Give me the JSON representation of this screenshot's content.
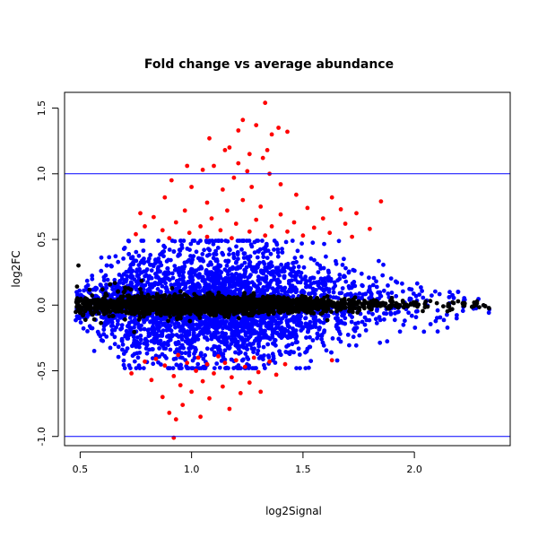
{
  "chart_data": {
    "type": "scatter",
    "title": "Fold change vs average abundance",
    "xlabel": "log2Signal",
    "ylabel": "log2FC",
    "xlim": [
      0.43,
      2.43
    ],
    "ylim": [
      -1.07,
      1.62
    ],
    "x_ticks": [
      "0.5",
      "1.0",
      "1.5",
      "2.0"
    ],
    "y_ticks": [
      "-1.0",
      "-0.5",
      "0.0",
      "0.5",
      "1.0",
      "1.5"
    ],
    "hlines": [
      1.0,
      -1.0
    ],
    "hline_color": "#0000ff",
    "grid": false,
    "legend": false,
    "series_colors": {
      "black": "#000000",
      "blue": "#0000ff",
      "red": "#ff0000"
    },
    "density_bands": [
      {
        "x": 0.5,
        "black_sd": 0.03,
        "blue_sd": 0.05
      },
      {
        "x": 0.7,
        "black_sd": 0.03,
        "blue_sd": 0.12
      },
      {
        "x": 1.0,
        "black_sd": 0.03,
        "blue_sd": 0.14
      },
      {
        "x": 1.3,
        "black_sd": 0.03,
        "blue_sd": 0.14
      },
      {
        "x": 1.6,
        "black_sd": 0.02,
        "blue_sd": 0.11
      },
      {
        "x": 2.0,
        "black_sd": 0.02,
        "blue_sd": 0.06
      },
      {
        "x": 2.33,
        "black_sd": 0.01,
        "blue_sd": 0.02
      }
    ],
    "highlighted_points": [
      [
        1.33,
        1.54
      ],
      [
        1.23,
        1.41
      ],
      [
        1.29,
        1.37
      ],
      [
        1.39,
        1.35
      ],
      [
        1.43,
        1.32
      ],
      [
        1.21,
        1.33
      ],
      [
        1.08,
        1.27
      ],
      [
        1.36,
        1.3
      ],
      [
        1.17,
        1.2
      ],
      [
        1.34,
        1.18
      ],
      [
        1.26,
        1.15
      ],
      [
        1.15,
        1.18
      ],
      [
        1.32,
        1.12
      ],
      [
        1.21,
        1.08
      ],
      [
        1.1,
        1.06
      ],
      [
        1.05,
        1.03
      ],
      [
        0.98,
        1.06
      ],
      [
        1.25,
        1.02
      ],
      [
        1.35,
        1.0
      ],
      [
        1.19,
        0.97
      ],
      [
        0.91,
        0.95
      ],
      [
        1.4,
        0.92
      ],
      [
        1.0,
        0.9
      ],
      [
        1.27,
        0.9
      ],
      [
        1.14,
        0.88
      ],
      [
        1.47,
        0.84
      ],
      [
        1.63,
        0.82
      ],
      [
        0.88,
        0.82
      ],
      [
        1.23,
        0.8
      ],
      [
        1.07,
        0.78
      ],
      [
        1.85,
        0.79
      ],
      [
        1.31,
        0.75
      ],
      [
        1.52,
        0.74
      ],
      [
        1.67,
        0.73
      ],
      [
        0.97,
        0.72
      ],
      [
        1.16,
        0.72
      ],
      [
        0.77,
        0.7
      ],
      [
        1.74,
        0.7
      ],
      [
        1.4,
        0.69
      ],
      [
        0.83,
        0.67
      ],
      [
        1.09,
        0.66
      ],
      [
        1.59,
        0.66
      ],
      [
        1.29,
        0.65
      ],
      [
        0.93,
        0.63
      ],
      [
        1.46,
        0.63
      ],
      [
        1.2,
        0.62
      ],
      [
        1.69,
        0.62
      ],
      [
        0.79,
        0.6
      ],
      [
        1.04,
        0.6
      ],
      [
        1.36,
        0.6
      ],
      [
        1.55,
        0.59
      ],
      [
        1.8,
        0.58
      ],
      [
        0.87,
        0.57
      ],
      [
        1.13,
        0.57
      ],
      [
        1.26,
        0.56
      ],
      [
        1.43,
        0.56
      ],
      [
        1.62,
        0.55
      ],
      [
        0.99,
        0.55
      ],
      [
        0.75,
        0.54
      ],
      [
        1.33,
        0.53
      ],
      [
        1.5,
        0.53
      ],
      [
        1.72,
        0.52
      ],
      [
        1.07,
        0.52
      ],
      [
        0.9,
        0.51
      ],
      [
        1.18,
        0.51
      ],
      [
        0.94,
        -0.38
      ],
      [
        1.03,
        -0.4
      ],
      [
        1.12,
        -0.39
      ],
      [
        0.84,
        -0.41
      ],
      [
        1.2,
        -0.42
      ],
      [
        1.28,
        -0.4
      ],
      [
        0.79,
        -0.43
      ],
      [
        0.98,
        -0.44
      ],
      [
        1.07,
        -0.45
      ],
      [
        1.15,
        -0.44
      ],
      [
        1.35,
        -0.43
      ],
      [
        0.88,
        -0.46
      ],
      [
        1.24,
        -0.47
      ],
      [
        1.42,
        -0.45
      ],
      [
        0.73,
        -0.52
      ],
      [
        1.02,
        -0.5
      ],
      [
        1.1,
        -0.52
      ],
      [
        1.3,
        -0.51
      ],
      [
        0.92,
        -0.54
      ],
      [
        1.18,
        -0.55
      ],
      [
        1.38,
        -0.53
      ],
      [
        0.82,
        -0.57
      ],
      [
        1.05,
        -0.58
      ],
      [
        1.26,
        -0.59
      ],
      [
        0.95,
        -0.61
      ],
      [
        1.14,
        -0.62
      ],
      [
        1.0,
        -0.66
      ],
      [
        1.22,
        -0.67
      ],
      [
        0.87,
        -0.7
      ],
      [
        1.08,
        -0.71
      ],
      [
        1.31,
        -0.66
      ],
      [
        1.63,
        -0.42
      ],
      [
        0.96,
        -0.76
      ],
      [
        1.17,
        -0.79
      ],
      [
        0.9,
        -0.82
      ],
      [
        1.04,
        -0.85
      ],
      [
        0.93,
        -0.87
      ],
      [
        0.92,
        -1.01
      ]
    ]
  }
}
